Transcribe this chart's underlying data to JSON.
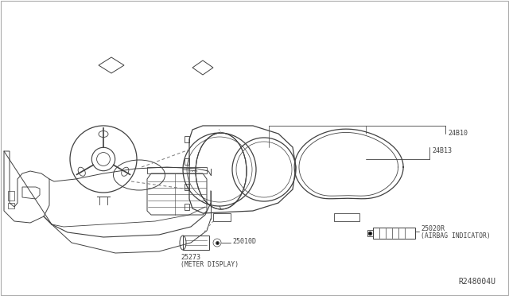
{
  "background_color": "#ffffff",
  "line_color": "#404040",
  "text_color": "#404040",
  "gray_color": "#888888",
  "diagram_ref": "R248004U",
  "label_fontsize": 6.0,
  "sublabel_fontsize": 5.8,
  "ref_fontsize": 7.0,
  "parts": [
    {
      "id": "24B10",
      "label": "24B10",
      "sublabel": ""
    },
    {
      "id": "24B13",
      "label": "24B13",
      "sublabel": ""
    },
    {
      "id": "25020R",
      "label": "25020R",
      "sublabel": "(AIRBAG INDICATOR)"
    },
    {
      "id": "25010D",
      "label": "25010D",
      "sublabel": ""
    },
    {
      "id": "25273",
      "label": "25273",
      "sublabel": "(METER DISPLAY)"
    }
  ]
}
